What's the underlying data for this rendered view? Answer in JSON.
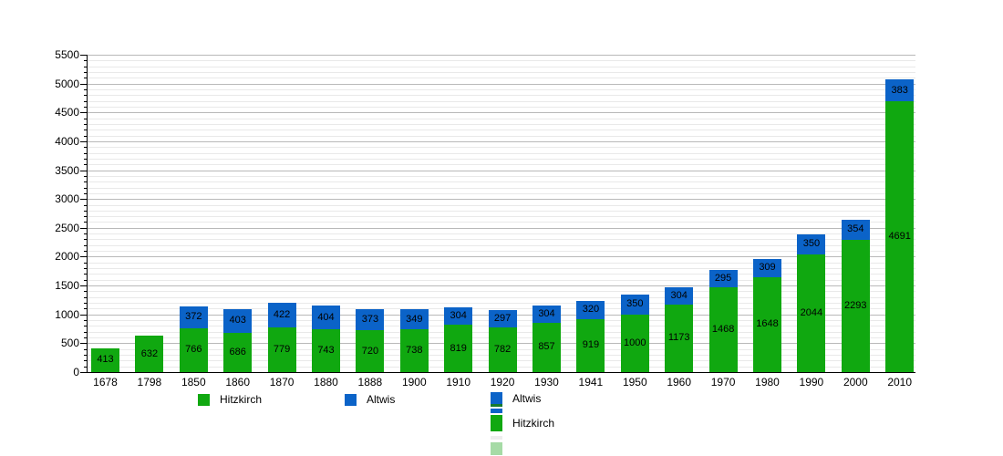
{
  "chart_data": {
    "type": "bar",
    "stacked": true,
    "title": "",
    "xlabel": "",
    "ylabel": "",
    "categories": [
      "1678",
      "1798",
      "1850",
      "1860",
      "1870",
      "1880",
      "1888",
      "1900",
      "1910",
      "1920",
      "1930",
      "1941",
      "1950",
      "1960",
      "1970",
      "1980",
      "1990",
      "2000",
      "2010"
    ],
    "series": [
      {
        "name": "Hitzkirch",
        "color": "#10a810",
        "values": [
          413,
          632,
          766,
          686,
          779,
          743,
          720,
          738,
          819,
          782,
          857,
          919,
          1000,
          1173,
          1468,
          1648,
          2044,
          2293,
          4691
        ]
      },
      {
        "name": "Altwis",
        "color": "#0b63c8",
        "values": [
          null,
          null,
          372,
          403,
          422,
          404,
          373,
          349,
          304,
          297,
          304,
          320,
          350,
          304,
          295,
          309,
          350,
          354,
          383
        ]
      }
    ],
    "ylim": [
      0,
      5500
    ],
    "y_major_step": 500,
    "y_minor_step": 100,
    "y_ticks": [
      "0",
      "500",
      "1000",
      "1500",
      "2000",
      "2500",
      "3000",
      "3500",
      "4000",
      "4500",
      "5000",
      "5500"
    ],
    "grid": true,
    "legend_position": "bottom"
  },
  "legend": {
    "item1": {
      "label": "Hitzkirch",
      "color": "#10a810"
    },
    "item2": {
      "label": "Altwis",
      "color": "#0b63c8"
    },
    "column3": {
      "altwis_label": "Altwis",
      "hitzkirch_label": "Hitzkirch",
      "swatch_altwis_color": "#0b63c8",
      "swatch_hitzkirch_color": "#10a810",
      "strip_darkgreen_color": "#167a2d",
      "strip_blue_color": "#0b63c8",
      "strip_pale_color": "#ededed",
      "swatch_lightgreen_color": "#a6dba6"
    }
  },
  "colors": {
    "hitzkirch_green": "#10a810",
    "altwis_blue": "#0b63c8",
    "grid_major": "#b9b9b9",
    "grid_minor": "#e9e9e9",
    "axis": "#000000"
  }
}
